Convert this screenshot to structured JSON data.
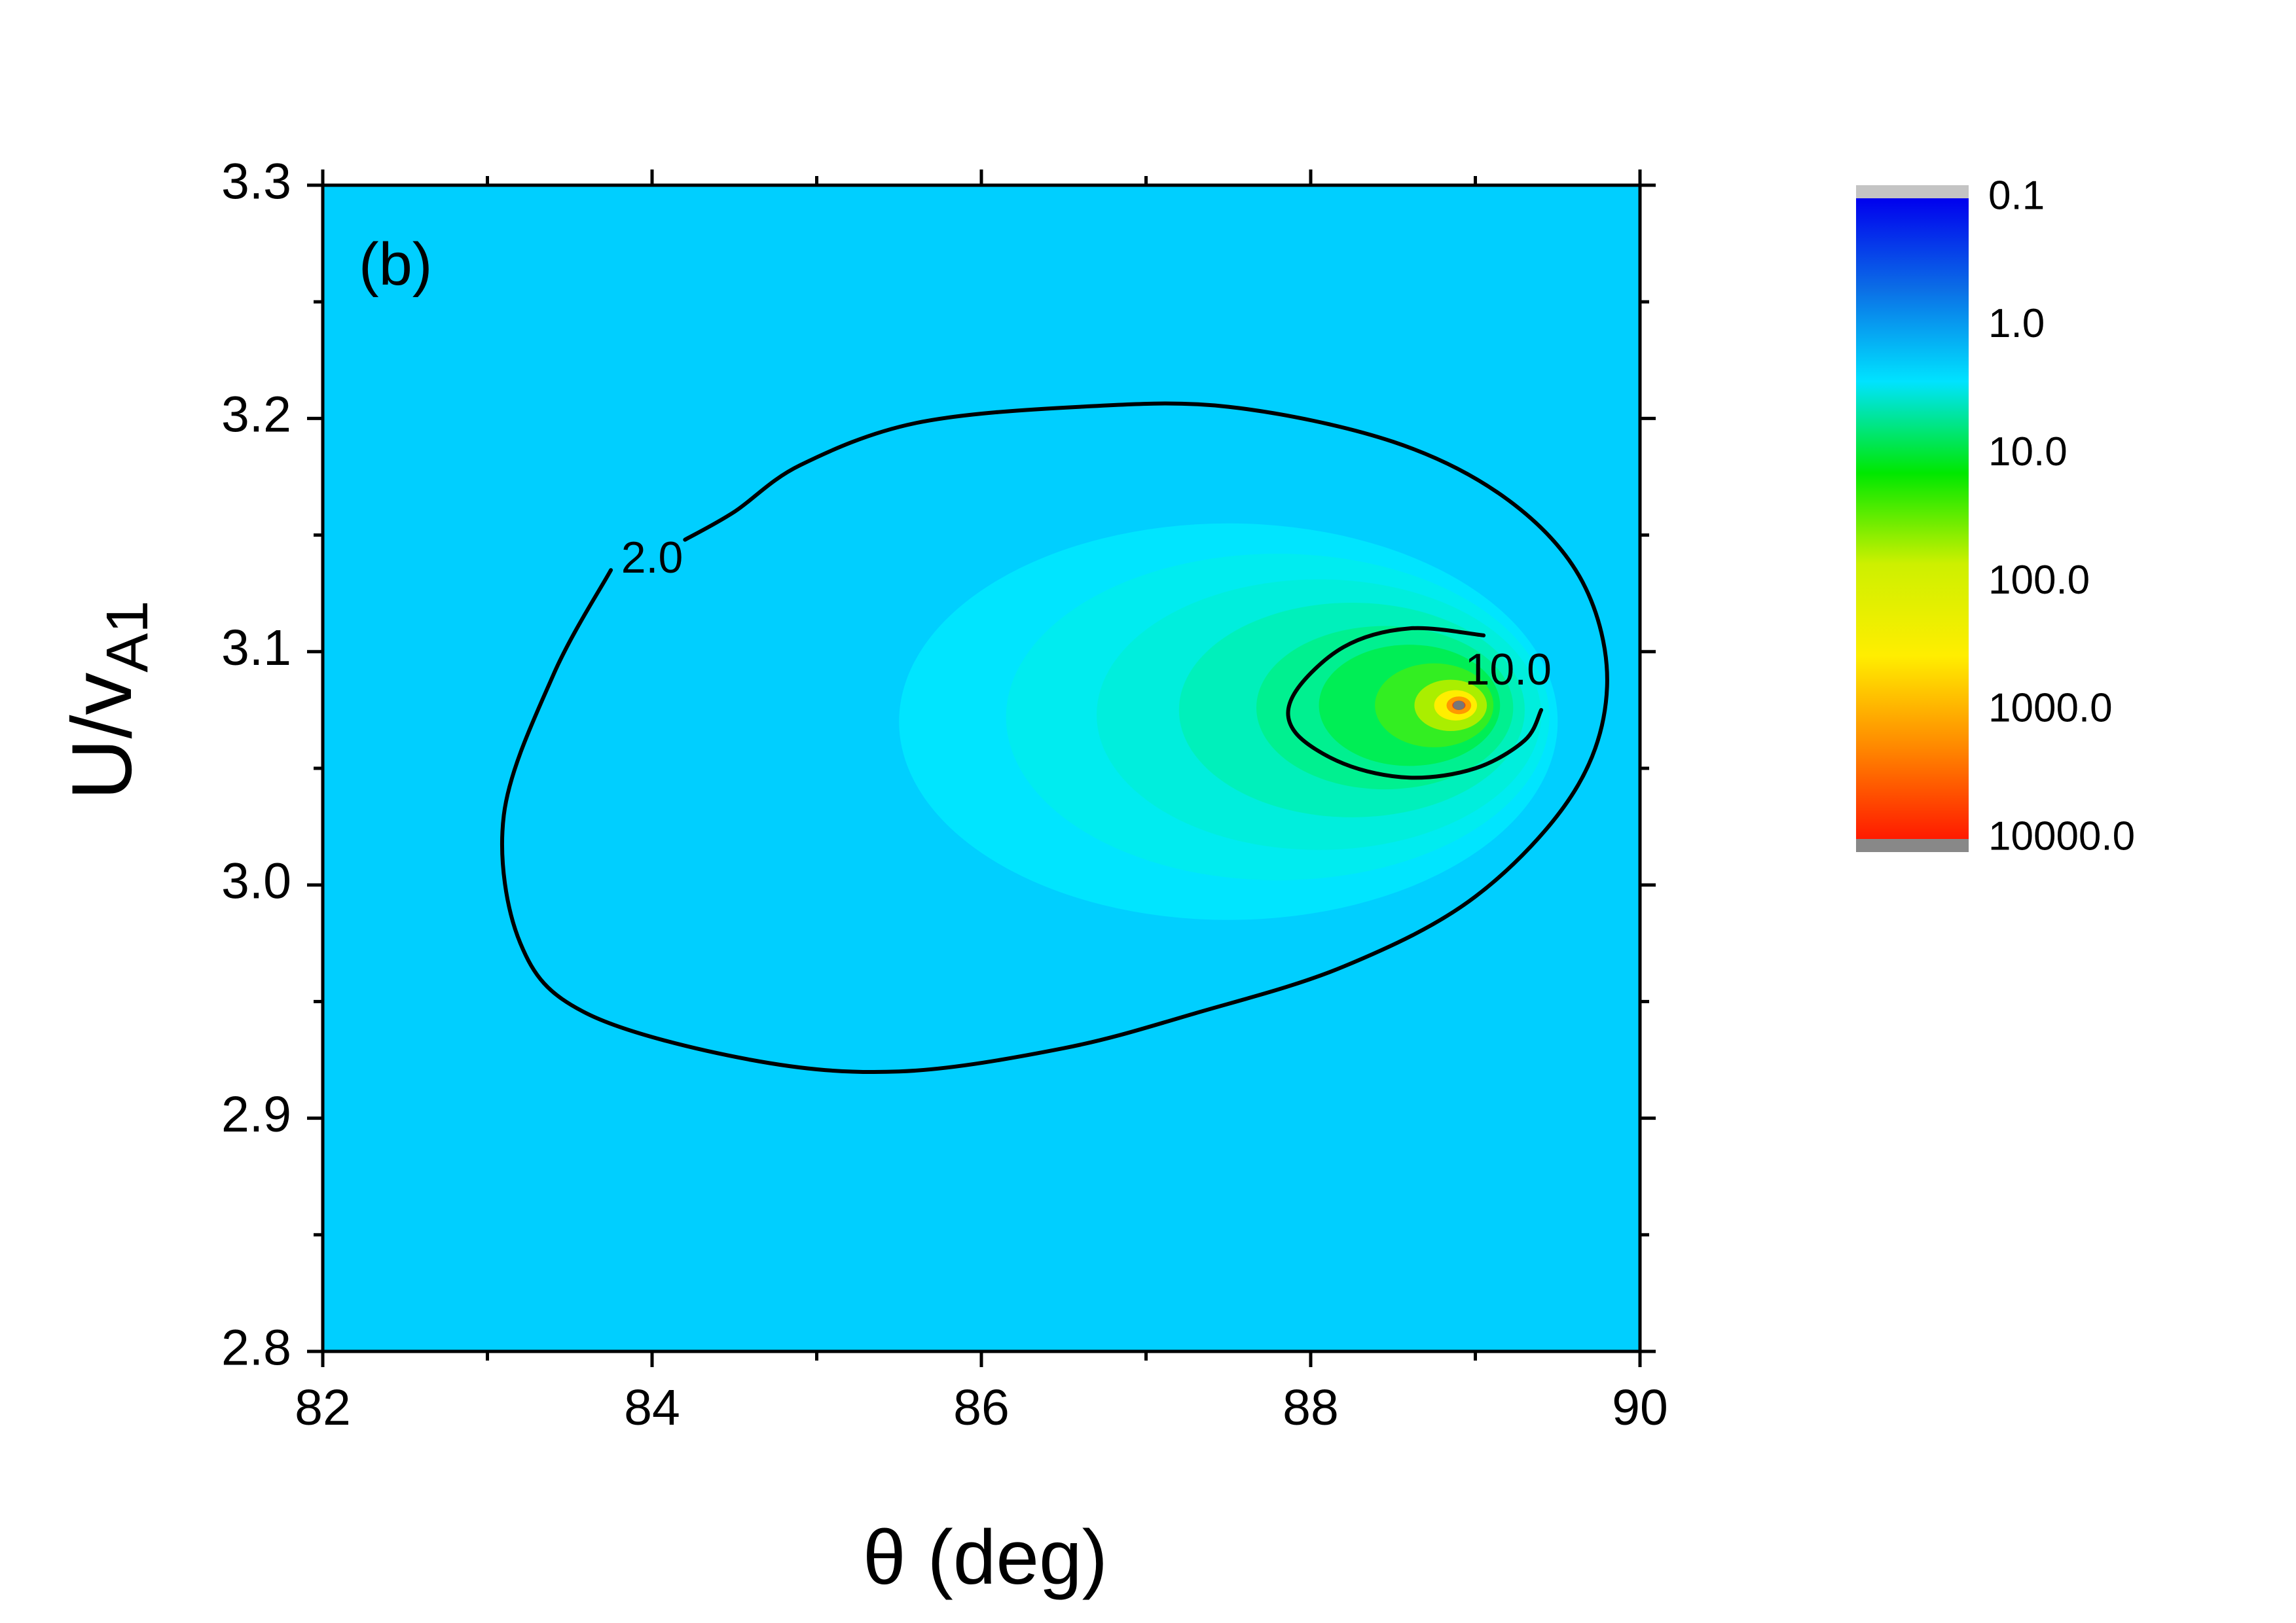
{
  "chart_data": {
    "type": "heatmap",
    "panel_label": "(b)",
    "xlabel": "θ (deg)",
    "ylabel_main": "U/v",
    "ylabel_sub": "A1",
    "xlim": [
      82,
      90
    ],
    "ylim": [
      2.8,
      3.3
    ],
    "x_ticks": [
      "82",
      "84",
      "86",
      "88",
      "90"
    ],
    "y_ticks": [
      "2.8",
      "2.9",
      "3.0",
      "3.1",
      "3.2",
      "3.3"
    ],
    "x_tick_values": [
      82,
      84,
      86,
      88,
      90
    ],
    "y_tick_values": [
      2.8,
      2.9,
      3.0,
      3.1,
      3.2,
      3.3
    ],
    "colorbar": {
      "scale": "log",
      "range": [
        0.1,
        10000
      ],
      "labels": [
        "0.1",
        "1.0",
        "10.0",
        "100.0",
        "1000.0",
        "10000.0"
      ],
      "label_values": [
        0.1,
        1,
        10,
        100,
        1000,
        10000
      ],
      "colors": [
        "#0000ee",
        "#0b6fe6",
        "#00e3ff",
        "#00e800",
        "#cdf000",
        "#ffee00",
        "#ff8800",
        "#ff1a00"
      ],
      "under_color": "#c4c4c4",
      "over_color": "#888888"
    },
    "background_level": "1.5",
    "background_color": "#00cfff",
    "peak": {
      "x": 88.9,
      "y": 3.077
    },
    "contours": [
      {
        "label": "2.0",
        "points": [
          [
            83.75,
            3.135
          ],
          [
            83.4,
            3.09
          ],
          [
            83.1,
            3.03
          ],
          [
            83.2,
            2.975
          ],
          [
            83.6,
            2.945
          ],
          [
            84.6,
            2.925
          ],
          [
            85.5,
            2.92
          ],
          [
            86.5,
            2.93
          ],
          [
            87.3,
            2.945
          ],
          [
            88.2,
            2.965
          ],
          [
            89.0,
            2.995
          ],
          [
            89.6,
            3.04
          ],
          [
            89.8,
            3.085
          ],
          [
            89.65,
            3.13
          ],
          [
            89.2,
            3.165
          ],
          [
            88.5,
            3.19
          ],
          [
            87.5,
            3.205
          ],
          [
            86.6,
            3.205
          ],
          [
            85.6,
            3.198
          ],
          [
            84.9,
            3.18
          ],
          [
            84.5,
            3.16
          ],
          [
            84.2,
            3.148
          ]
        ]
      },
      {
        "label": "10.0",
        "points": [
          [
            89.05,
            3.107
          ],
          [
            88.6,
            3.11
          ],
          [
            88.2,
            3.102
          ],
          [
            87.9,
            3.082
          ],
          [
            87.9,
            3.066
          ],
          [
            88.2,
            3.052
          ],
          [
            88.6,
            3.046
          ],
          [
            89.0,
            3.05
          ],
          [
            89.3,
            3.062
          ],
          [
            89.4,
            3.075
          ]
        ]
      }
    ],
    "contour_label_positions": [
      {
        "label": "2.0",
        "x": 84.0,
        "y": 3.139
      },
      {
        "label": "10.0",
        "x": 89.2,
        "y": 3.091
      }
    ],
    "color_bands": [
      {
        "cx": 87.5,
        "cy": 3.07,
        "rx": 2.0,
        "ry": 0.085,
        "color": "#00e5ff"
      },
      {
        "cx": 87.8,
        "cy": 3.072,
        "rx": 1.65,
        "ry": 0.07,
        "color": "#00ecf0"
      },
      {
        "cx": 88.05,
        "cy": 3.073,
        "rx": 1.35,
        "ry": 0.058,
        "color": "#00eedd"
      },
      {
        "cx": 88.25,
        "cy": 3.075,
        "rx": 1.05,
        "ry": 0.046,
        "color": "#00f0bb"
      },
      {
        "cx": 88.45,
        "cy": 3.076,
        "rx": 0.78,
        "ry": 0.035,
        "color": "#00f090"
      },
      {
        "cx": 88.6,
        "cy": 3.077,
        "rx": 0.55,
        "ry": 0.026,
        "color": "#00ee55"
      },
      {
        "cx": 88.75,
        "cy": 3.077,
        "rx": 0.36,
        "ry": 0.018,
        "color": "#33ee22"
      },
      {
        "cx": 88.85,
        "cy": 3.077,
        "rx": 0.22,
        "ry": 0.011,
        "color": "#aaee00"
      },
      {
        "cx": 88.88,
        "cy": 3.077,
        "rx": 0.13,
        "ry": 0.0065,
        "color": "#ffee00"
      },
      {
        "cx": 88.9,
        "cy": 3.077,
        "rx": 0.075,
        "ry": 0.0038,
        "color": "#ff9900"
      },
      {
        "cx": 88.9,
        "cy": 3.077,
        "rx": 0.04,
        "ry": 0.002,
        "color": "#ff3300"
      },
      {
        "cx": 88.9,
        "cy": 3.077,
        "rx": 0.018,
        "ry": 0.001,
        "color": "#888888"
      }
    ]
  }
}
